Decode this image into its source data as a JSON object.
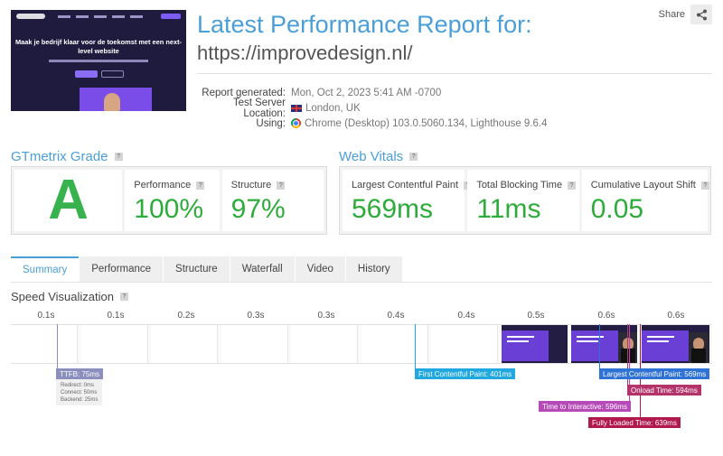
{
  "report": {
    "title": "Latest Performance Report for:",
    "url": "https://improvedesign.nl/",
    "share_label": "Share",
    "thumbnail_headline": "Maak je bedrijf klaar voor de toekomst met een next-level website",
    "meta": [
      {
        "key": "Report generated:",
        "value": "Mon, Oct 2, 2023 5:41 AM -0700",
        "icon": ""
      },
      {
        "key": "Test Server Location:",
        "value": "London, UK",
        "icon": "uk-flag-icon"
      },
      {
        "key": "Using:",
        "value": "Chrome (Desktop) 103.0.5060.134, Lighthouse 9.6.4",
        "icon": "chrome-icon"
      }
    ]
  },
  "grade": {
    "title": "GTmetrix Grade",
    "letter": "A",
    "performance_label": "Performance",
    "performance_value": "100%",
    "structure_label": "Structure",
    "structure_value": "97%"
  },
  "vitals": {
    "title": "Web Vitals",
    "lcp_label": "Largest Contentful Paint",
    "lcp_value": "569ms",
    "tbt_label": "Total Blocking Time",
    "tbt_value": "11ms",
    "cls_label": "Cumulative Layout Shift",
    "cls_value": "0.05"
  },
  "help_icon": "?",
  "tabs": [
    "Summary",
    "Performance",
    "Structure",
    "Waterfall",
    "Video",
    "History"
  ],
  "active_tab": "Summary",
  "speed": {
    "title": "Speed Visualization",
    "ticks": [
      "0.1s",
      "0.1s",
      "0.2s",
      "0.3s",
      "0.3s",
      "0.4s",
      "0.4s",
      "0.5s",
      "0.6s",
      "0.6s"
    ],
    "markers": {
      "ttfb": {
        "label": "TTFB: 75ms",
        "color": "#8a8fbe",
        "details": [
          "Redirect: 0ms",
          "Connect: 50ms",
          "Backend: 25ms"
        ]
      },
      "fcp": {
        "label": "First Contentful Paint: 401ms",
        "color": "#22a8e0"
      },
      "lcp": {
        "label": "Largest Contentful Paint: 569ms",
        "color": "#2f72d6"
      },
      "onload": {
        "label": "Onload Time: 594ms",
        "color": "#b5336b"
      },
      "tti": {
        "label": "Time to Interactive: 596ms",
        "color": "#b64ab8"
      },
      "fully": {
        "label": "Fully Loaded Time: 639ms",
        "color": "#b0184e"
      }
    }
  }
}
